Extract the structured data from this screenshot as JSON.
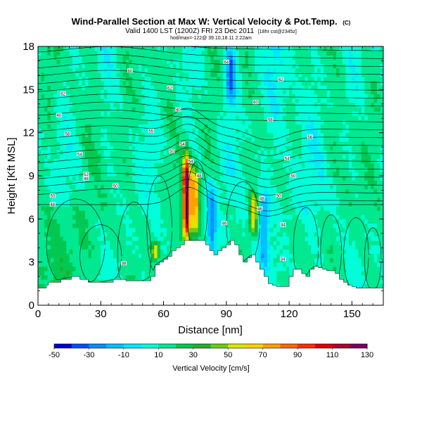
{
  "chart_data": {
    "type": "heatmap",
    "title": "Wind-Parallel Section at Max W: Vertical Velocity & Pot.Temp.",
    "title_mark": "(C)",
    "subtitle": "Valid 1400 LST (1200Z) FRI 23 Dec 2011",
    "subtitle_extra": "[18hr cst@2345z]",
    "info_line": "hod/max=-122@ 39.10,18.11 2:22am",
    "xlabel": "Distance [nm]",
    "ylabel": "Height [Kft MSL]",
    "xlim": [
      0,
      165
    ],
    "ylim": [
      0,
      18
    ],
    "xticks": [
      0,
      30,
      60,
      90,
      120,
      150
    ],
    "yticks": [
      0,
      3,
      6,
      9,
      12,
      15,
      18
    ],
    "colorbar": {
      "label": "Vertical Velocity [cm/s]",
      "ticks": [
        -50,
        -30,
        -10,
        10,
        30,
        50,
        70,
        90,
        110,
        130
      ],
      "bins": [
        -50,
        -40,
        -30,
        -20,
        -10,
        0,
        10,
        20,
        30,
        40,
        50,
        60,
        70,
        80,
        90,
        100,
        110,
        120,
        130
      ],
      "colors": [
        "#0000d0",
        "#0050ff",
        "#0090ff",
        "#00c0ff",
        "#00e8ff",
        "#00ffd8",
        "#00e890",
        "#00c850",
        "#20b030",
        "#70cc10",
        "#d8e800",
        "#ffd000",
        "#ffa000",
        "#ff6800",
        "#ff3000",
        "#e00000",
        "#b00030",
        "#7a0060"
      ]
    },
    "updrafts": [
      {
        "x": 71,
        "z_base": 4.5,
        "z_top": 10.4,
        "w_max": 130
      },
      {
        "x": 75,
        "z_base": 4.8,
        "z_top": 9.6,
        "w_max": 70
      },
      {
        "x": 103,
        "z_base": 5.0,
        "z_top": 7.8,
        "w_max": 60
      },
      {
        "x": 56,
        "z_base": 3.2,
        "z_top": 4.4,
        "w_max": 55
      }
    ],
    "downdrafts": [
      {
        "x": 83,
        "z_base": 3.0,
        "z_top": 8.5,
        "w_min": -15
      },
      {
        "x": 92,
        "z_base": 14.0,
        "z_top": 18.0,
        "w_min": -20
      },
      {
        "x": 108,
        "z_base": 2.5,
        "z_top": 8.0,
        "w_min": -15
      }
    ],
    "terrain_profile": {
      "x": [
        0,
        4,
        5,
        10,
        11,
        16,
        20,
        24,
        30,
        36,
        40,
        42,
        46,
        50,
        54,
        56,
        58,
        60,
        62,
        64,
        66,
        68,
        70,
        72,
        74,
        78,
        80,
        82,
        84,
        86,
        88,
        90,
        92,
        94,
        96,
        98,
        100,
        102,
        104,
        106,
        108,
        110,
        112,
        114,
        116,
        118,
        120,
        122,
        124,
        126,
        128,
        130,
        132,
        134,
        136,
        138,
        140,
        142,
        144,
        146,
        148,
        150,
        152,
        154,
        156,
        158,
        160,
        162,
        165
      ],
      "z": [
        1.2,
        1.4,
        1.6,
        1.6,
        1.8,
        2.0,
        1.8,
        1.6,
        1.6,
        1.8,
        1.8,
        1.7,
        1.7,
        1.7,
        2.0,
        2.8,
        3.0,
        3.2,
        3.4,
        3.8,
        4.0,
        4.2,
        4.5,
        4.5,
        4.5,
        4.5,
        4.2,
        3.8,
        3.5,
        3.8,
        4.0,
        4.2,
        4.5,
        4.2,
        3.5,
        3.0,
        3.3,
        3.5,
        3.0,
        2.5,
        2.0,
        1.5,
        1.4,
        1.3,
        1.3,
        1.3,
        2.0,
        2.5,
        2.5,
        2.2,
        2.0,
        2.5,
        2.7,
        2.6,
        2.5,
        2.4,
        2.4,
        2.2,
        1.8,
        1.6,
        1.4,
        1.3,
        1.2,
        1.2,
        1.2,
        1.2,
        1.2,
        1.2,
        1.2
      ]
    },
    "theta_contour_labels": [
      {
        "x": 44,
        "z": 16.3,
        "text": "60"
      },
      {
        "x": 90,
        "z": 16.9,
        "text": "64"
      },
      {
        "x": 12,
        "z": 14.7,
        "text": "62"
      },
      {
        "x": 63,
        "z": 15.1,
        "text": "62"
      },
      {
        "x": 116,
        "z": 15.7,
        "text": "62"
      },
      {
        "x": 10,
        "z": 13.2,
        "text": "40"
      },
      {
        "x": 67,
        "z": 13.6,
        "text": "40"
      },
      {
        "x": 104,
        "z": 14.1,
        "text": "60"
      },
      {
        "x": 14,
        "z": 11.9,
        "text": "58"
      },
      {
        "x": 54,
        "z": 12.1,
        "text": "55"
      },
      {
        "x": 111,
        "z": 12.9,
        "text": "58"
      },
      {
        "x": 130,
        "z": 11.7,
        "text": "56"
      },
      {
        "x": 69,
        "z": 11.2,
        "text": "54"
      },
      {
        "x": 20,
        "z": 10.5,
        "text": "54"
      },
      {
        "x": 64,
        "z": 10.7,
        "text": "50"
      },
      {
        "x": 73,
        "z": 10.0,
        "text": "54"
      },
      {
        "x": 119,
        "z": 10.2,
        "text": "54"
      },
      {
        "x": 23,
        "z": 9.1,
        "text": "52"
      },
      {
        "x": 77,
        "z": 9.0,
        "text": "48"
      },
      {
        "x": 122,
        "z": 9.0,
        "text": "50"
      },
      {
        "x": 23,
        "z": 8.8,
        "text": "48"
      },
      {
        "x": 37,
        "z": 8.3,
        "text": "50"
      },
      {
        "x": 7,
        "z": 7.6,
        "text": "50"
      },
      {
        "x": 107,
        "z": 7.4,
        "text": "48"
      },
      {
        "x": 115,
        "z": 7.6,
        "text": "50"
      },
      {
        "x": 7,
        "z": 7.0,
        "text": "48"
      },
      {
        "x": 106,
        "z": 6.7,
        "text": "46"
      },
      {
        "x": 89,
        "z": 5.7,
        "text": "46"
      },
      {
        "x": 117,
        "z": 5.6,
        "text": "44"
      },
      {
        "x": 41,
        "z": 2.9,
        "text": "38"
      },
      {
        "x": 117,
        "z": 3.2,
        "text": "34"
      }
    ]
  }
}
